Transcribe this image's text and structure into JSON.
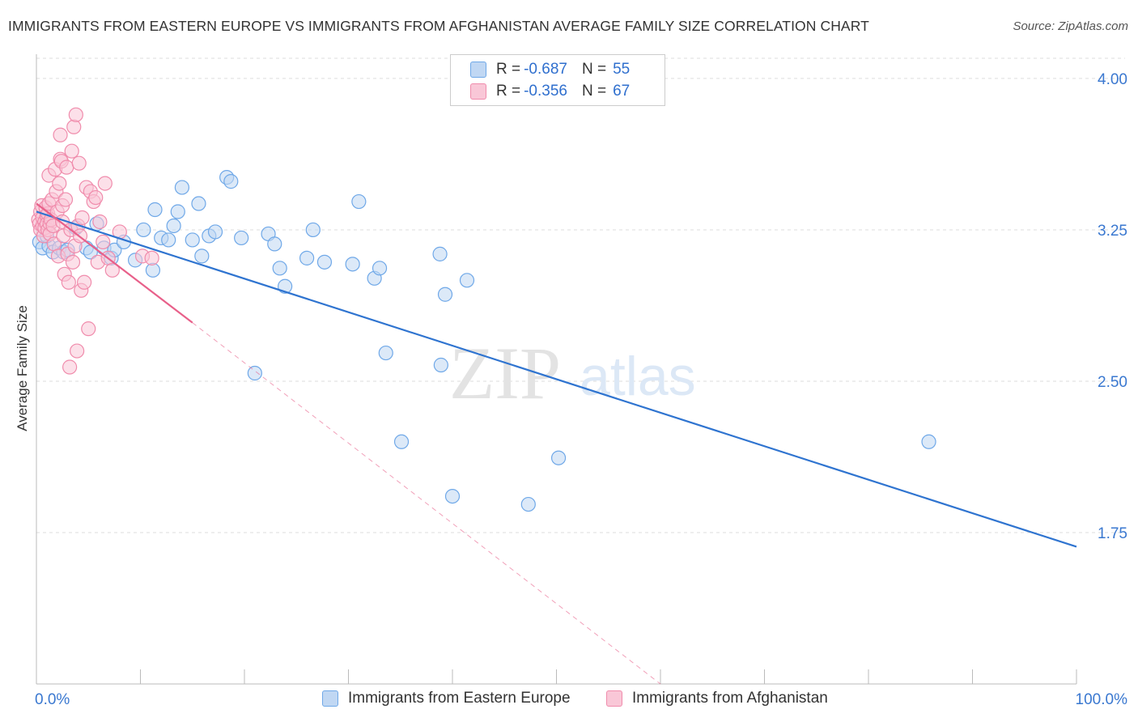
{
  "chart_data": {
    "type": "scatter",
    "title": "IMMIGRANTS FROM EASTERN EUROPE VS IMMIGRANTS FROM AFGHANISTAN AVERAGE FAMILY SIZE CORRELATION CHART",
    "source": "Source: ZipAtlas.com",
    "ylabel": "Average Family Size",
    "xlabel": "",
    "x_tick_labels": {
      "min": "0.0%",
      "max": "100.0%"
    },
    "y_ticks": [
      4.0,
      3.25,
      2.5,
      1.75
    ],
    "y_tick_labels": [
      "4.00",
      "3.25",
      "2.50",
      "1.75"
    ],
    "xlim": [
      0,
      100
    ],
    "ylim": [
      1.0,
      4.1
    ],
    "watermark": {
      "zip": "ZIP",
      "atlas": "atlas"
    },
    "legend": [
      {
        "r_label": "R =",
        "r_value": "-0.687",
        "n_label": "N =",
        "n_value": "55"
      },
      {
        "r_label": "R =",
        "r_value": "-0.356",
        "n_label": "N =",
        "n_value": "67"
      }
    ],
    "series": [
      {
        "name": "Immigrants from Eastern Europe",
        "color": "#6fa8e8",
        "fill": "#c0d7f3",
        "line_color": "#2f74d0",
        "trend": {
          "x0": 0,
          "y0": 3.34,
          "x1": 100,
          "y1": 1.68
        },
        "points": [
          [
            0.3,
            3.19
          ],
          [
            0.6,
            3.16
          ],
          [
            1.2,
            3.17
          ],
          [
            1.6,
            3.14
          ],
          [
            2.2,
            3.16
          ],
          [
            2.6,
            3.14
          ],
          [
            3.0,
            3.15
          ],
          [
            3.8,
            3.26
          ],
          [
            4.8,
            3.16
          ],
          [
            5.2,
            3.14
          ],
          [
            5.8,
            3.28
          ],
          [
            6.5,
            3.16
          ],
          [
            7.2,
            3.11
          ],
          [
            7.5,
            3.15
          ],
          [
            8.4,
            3.19
          ],
          [
            9.5,
            3.1
          ],
          [
            10.3,
            3.25
          ],
          [
            11.2,
            3.05
          ],
          [
            11.4,
            3.35
          ],
          [
            12.0,
            3.21
          ],
          [
            12.7,
            3.2
          ],
          [
            13.2,
            3.27
          ],
          [
            13.6,
            3.34
          ],
          [
            14.0,
            3.46
          ],
          [
            15.0,
            3.2
          ],
          [
            15.6,
            3.38
          ],
          [
            15.9,
            3.12
          ],
          [
            16.6,
            3.22
          ],
          [
            17.2,
            3.24
          ],
          [
            18.3,
            3.51
          ],
          [
            18.7,
            3.49
          ],
          [
            19.7,
            3.21
          ],
          [
            21.0,
            2.54
          ],
          [
            22.3,
            3.23
          ],
          [
            22.9,
            3.18
          ],
          [
            23.4,
            3.06
          ],
          [
            23.9,
            2.97
          ],
          [
            26.0,
            3.11
          ],
          [
            26.6,
            3.25
          ],
          [
            27.7,
            3.09
          ],
          [
            30.4,
            3.08
          ],
          [
            31.0,
            3.39
          ],
          [
            32.5,
            3.01
          ],
          [
            33.0,
            3.06
          ],
          [
            33.6,
            2.64
          ],
          [
            35.1,
            2.2
          ],
          [
            38.8,
            3.13
          ],
          [
            38.9,
            2.58
          ],
          [
            39.3,
            2.93
          ],
          [
            40.0,
            1.93
          ],
          [
            41.4,
            3.0
          ],
          [
            47.3,
            1.89
          ],
          [
            50.2,
            2.12
          ],
          [
            85.8,
            2.2
          ],
          [
            1.0,
            3.22
          ]
        ]
      },
      {
        "name": "Immigrants from Afghanistan",
        "color": "#f08cac",
        "fill": "#f9c7d7",
        "line_color": "#e8608a",
        "trend": {
          "x0": 0,
          "y0": 3.38,
          "x1": 15,
          "y1": 2.79
        },
        "trend_extension": {
          "x0": 15,
          "y0": 2.79,
          "x1": 60,
          "y1": 1.0
        },
        "points": [
          [
            0.2,
            3.3
          ],
          [
            0.3,
            3.28
          ],
          [
            0.4,
            3.34
          ],
          [
            0.4,
            3.25
          ],
          [
            0.5,
            3.37
          ],
          [
            0.6,
            3.27
          ],
          [
            0.6,
            3.31
          ],
          [
            0.7,
            3.22
          ],
          [
            0.8,
            3.29
          ],
          [
            0.8,
            3.26
          ],
          [
            0.9,
            3.36
          ],
          [
            1.0,
            3.32
          ],
          [
            1.0,
            3.28
          ],
          [
            1.1,
            3.25
          ],
          [
            1.1,
            3.33
          ],
          [
            1.2,
            3.52
          ],
          [
            1.2,
            3.38
          ],
          [
            1.3,
            3.28
          ],
          [
            1.3,
            3.23
          ],
          [
            1.4,
            3.3
          ],
          [
            1.5,
            3.4
          ],
          [
            1.6,
            3.27
          ],
          [
            1.7,
            3.18
          ],
          [
            1.8,
            3.55
          ],
          [
            1.9,
            3.44
          ],
          [
            2.0,
            3.34
          ],
          [
            2.1,
            3.12
          ],
          [
            2.2,
            3.48
          ],
          [
            2.3,
            3.6
          ],
          [
            2.3,
            3.72
          ],
          [
            2.4,
            3.59
          ],
          [
            2.5,
            3.37
          ],
          [
            2.5,
            3.29
          ],
          [
            2.6,
            3.22
          ],
          [
            2.7,
            3.03
          ],
          [
            2.8,
            3.4
          ],
          [
            2.9,
            3.56
          ],
          [
            3.0,
            3.13
          ],
          [
            3.1,
            2.99
          ],
          [
            3.2,
            2.57
          ],
          [
            3.3,
            3.25
          ],
          [
            3.4,
            3.64
          ],
          [
            3.5,
            3.09
          ],
          [
            3.6,
            3.76
          ],
          [
            3.7,
            3.17
          ],
          [
            3.8,
            3.82
          ],
          [
            3.9,
            2.65
          ],
          [
            4.0,
            3.27
          ],
          [
            4.1,
            3.58
          ],
          [
            4.2,
            3.22
          ],
          [
            4.3,
            2.95
          ],
          [
            4.4,
            3.31
          ],
          [
            4.6,
            2.99
          ],
          [
            4.8,
            3.46
          ],
          [
            5.0,
            2.76
          ],
          [
            5.2,
            3.44
          ],
          [
            5.5,
            3.39
          ],
          [
            5.7,
            3.41
          ],
          [
            5.9,
            3.09
          ],
          [
            6.1,
            3.29
          ],
          [
            6.4,
            3.19
          ],
          [
            6.6,
            3.48
          ],
          [
            6.9,
            3.11
          ],
          [
            7.3,
            3.05
          ],
          [
            8.0,
            3.24
          ],
          [
            10.2,
            3.12
          ],
          [
            11.1,
            3.11
          ]
        ]
      }
    ]
  }
}
